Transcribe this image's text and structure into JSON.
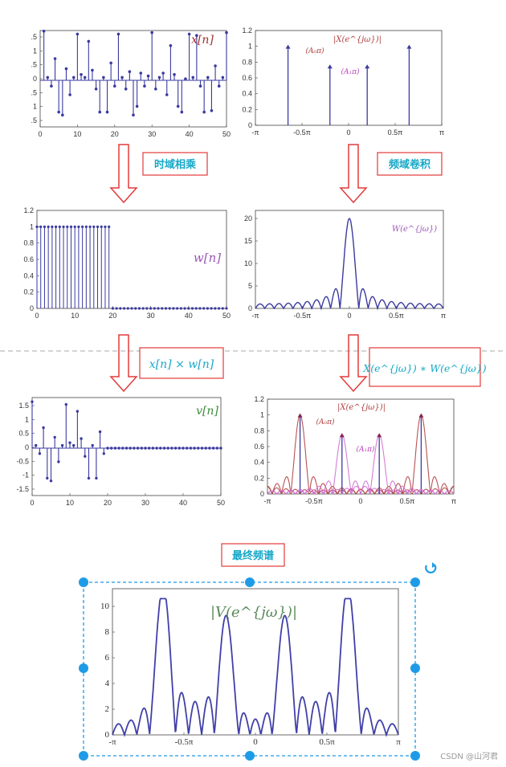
{
  "labels": {
    "time_multiply": "时域相乘",
    "freq_convolve": "频域卷积",
    "time_product": "x[n] × w[n]",
    "freq_product": "X(e^{jω}) ∗ W(e^{jω})",
    "final_spectrum": "最终频谱",
    "watermark": "CSDN @山河君"
  },
  "colors": {
    "stem": "#3a3aa0",
    "accent_red": "#e23a3a",
    "cyan": "#16a8c8",
    "handle": "#1e9be6",
    "purple": "#9b59b6",
    "green": "#3a8a3a",
    "dark_red": "#a03030"
  },
  "chart_data": [
    {
      "id": "x_n",
      "type": "stem",
      "legend": "x[n]",
      "xlim": [
        0,
        50
      ],
      "ylim": [
        -1.75,
        1.8
      ],
      "xticks": [
        "0",
        "10",
        "20",
        "30",
        "40",
        "50"
      ],
      "yticks": [
        ".5",
        "1",
        ".5",
        "0",
        ".5",
        "1",
        ".5"
      ],
      "values": [
        1.7,
        0.1,
        -0.2,
        0.75,
        -1.1,
        -1.2,
        0.4,
        -0.5,
        0.1,
        1.6,
        0.2,
        0.1,
        1.35,
        0.35,
        -0.3,
        -1.1,
        0.1,
        -1.1,
        0.6,
        -0.2,
        1.6,
        0.1,
        -0.3,
        0.3,
        -1.2,
        -0.9,
        0.25,
        -0.2,
        0.15,
        1.65,
        -0.3,
        0.1,
        0.25,
        -0.5,
        1.2,
        0.2,
        -0.9,
        -1.1,
        0.05,
        1.6,
        0.1,
        1.55,
        -0.2,
        -1.1,
        0.1,
        -1.05,
        0.5,
        -0.2,
        0.1,
        1.65
      ]
    },
    {
      "id": "X_spectrum",
      "type": "spectrum_stems",
      "legend": "|X(e^{jω})|",
      "annotations": [
        "(A₀π)",
        "(A₁π)"
      ],
      "xticks": [
        "-π",
        "-0.5π",
        "0",
        "0.5π",
        "π"
      ],
      "yticks": [
        "0",
        "0.2",
        "0.4",
        "0.6",
        "0.8",
        "1",
        "1.2"
      ],
      "ylim": [
        0,
        1.2
      ],
      "stems": [
        {
          "x": -0.65,
          "y": 1.0
        },
        {
          "x": -0.2,
          "y": 0.75
        },
        {
          "x": 0.2,
          "y": 0.75
        },
        {
          "x": 0.65,
          "y": 1.0
        }
      ]
    },
    {
      "id": "w_n",
      "type": "stem",
      "legend": "w[n]",
      "xlim": [
        0,
        50
      ],
      "ylim": [
        0,
        1.2
      ],
      "xticks": [
        "0",
        "10",
        "20",
        "30",
        "40",
        "50"
      ],
      "yticks": [
        "0",
        "0.2",
        "0.4",
        "0.6",
        "0.8",
        "1",
        "1.2"
      ],
      "ones_until": 19
    },
    {
      "id": "W_spectrum",
      "type": "line",
      "legend": "W(e^{jω})",
      "xticks": [
        "-π",
        "-0.5π",
        "0",
        "0.5π",
        "π"
      ],
      "yticks": [
        "0",
        "5",
        "10",
        "15",
        "20"
      ],
      "ylim": [
        0,
        22
      ],
      "N": 20
    },
    {
      "id": "v_n",
      "type": "stem",
      "legend": "v[n]",
      "xlim": [
        0,
        50
      ],
      "ylim": [
        -1.75,
        1.8
      ],
      "xticks": [
        "0",
        "10",
        "20",
        "30",
        "40",
        "50"
      ],
      "yticks": [
        "-1.5",
        "-1",
        "-0.5",
        "0",
        "0.5",
        "1",
        "1.5"
      ],
      "ones_until": 19
    },
    {
      "id": "conv_spectrum",
      "type": "line",
      "legend": "|X(e^{jω})|",
      "annotations": [
        "(A₀π)",
        "(A₁π)"
      ],
      "xticks": [
        "-π",
        "-0.5π",
        "0",
        "0.5π",
        "π"
      ],
      "yticks": [
        "0",
        "0.2",
        "0.4",
        "0.6",
        "0.8",
        "1",
        "1.2"
      ],
      "ylim": [
        0,
        1.2
      ]
    },
    {
      "id": "V_spectrum",
      "type": "line",
      "legend": "|V(e^{jω})|",
      "xticks": [
        "-π",
        "-0.5π",
        "0",
        "0.5π",
        "π"
      ],
      "yticks": [
        "0",
        "2",
        "4",
        "6",
        "8",
        "10"
      ],
      "ylim": [
        0,
        11.5
      ]
    }
  ]
}
